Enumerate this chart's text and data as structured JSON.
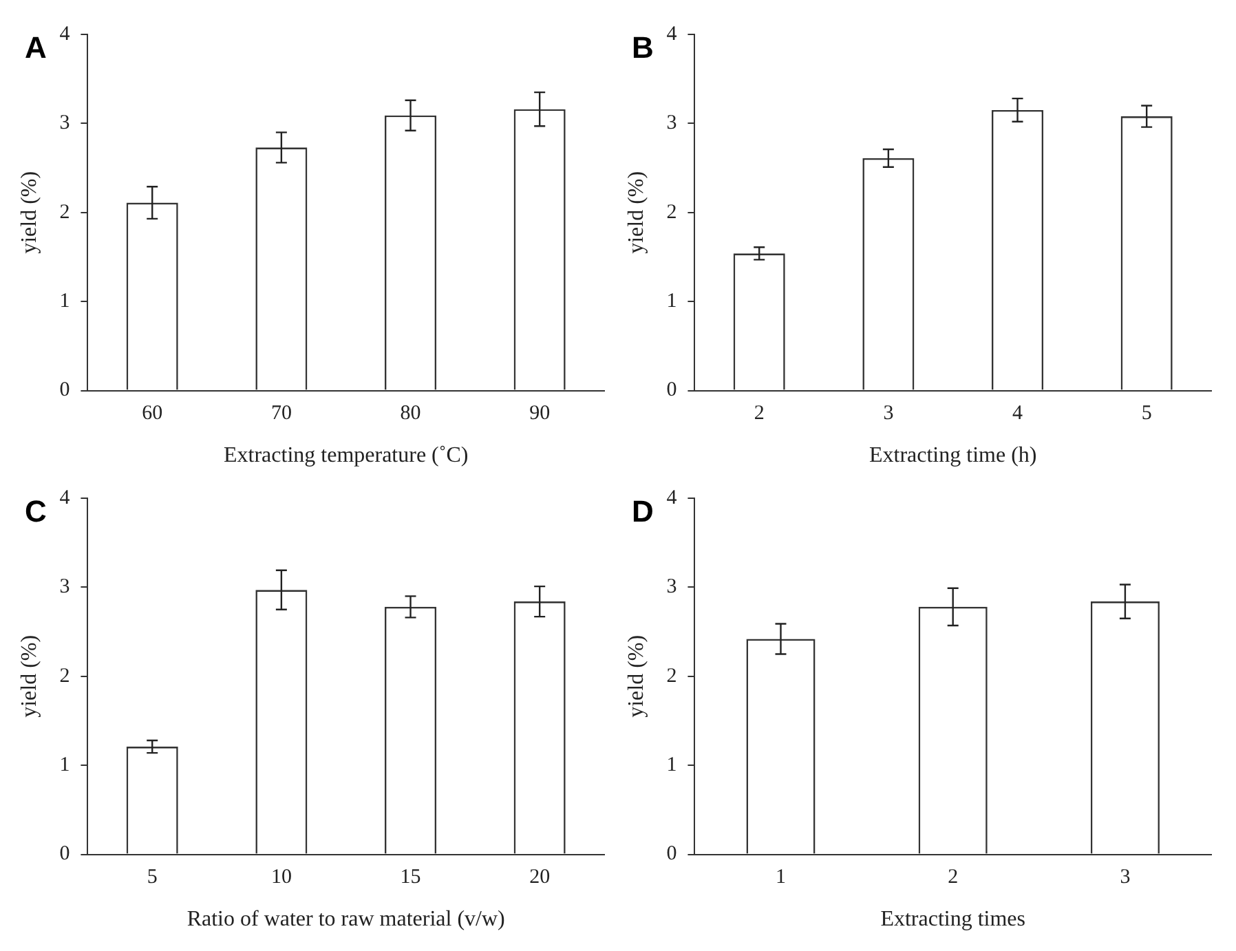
{
  "chart_data": [
    {
      "type": "bar",
      "title": "A",
      "xlabel": "Extracting temperature (˚C)",
      "ylabel": "yield (%)",
      "categories": [
        "60",
        "70",
        "80",
        "90"
      ],
      "values": [
        2.11,
        2.73,
        3.09,
        3.16
      ],
      "errors": [
        0.18,
        0.17,
        0.17,
        0.19
      ],
      "color": "#ffffff",
      "ylim": [
        0,
        4
      ],
      "yticks": [
        0,
        1,
        2,
        3,
        4
      ],
      "grid": false,
      "legend": false
    },
    {
      "type": "bar",
      "title": "B",
      "xlabel": "Extracting time (h)",
      "ylabel": "yield (%)",
      "categories": [
        "2",
        "3",
        "4",
        "5"
      ],
      "values": [
        1.54,
        2.61,
        3.15,
        3.08
      ],
      "errors": [
        0.07,
        0.1,
        0.13,
        0.12
      ],
      "color": "#ffffff",
      "ylim": [
        0,
        4
      ],
      "yticks": [
        0,
        1,
        2,
        3,
        4
      ],
      "grid": false,
      "legend": false
    },
    {
      "type": "bar",
      "title": "C",
      "xlabel": "Ratio of water to raw material (v/w)",
      "ylabel": "yield (%)",
      "categories": [
        "5",
        "10",
        "15",
        "20"
      ],
      "values": [
        1.21,
        2.97,
        2.78,
        2.84
      ],
      "errors": [
        0.07,
        0.22,
        0.12,
        0.17
      ],
      "color": "#ffffff",
      "ylim": [
        0,
        4
      ],
      "yticks": [
        0,
        1,
        2,
        3,
        4
      ],
      "grid": false,
      "legend": false
    },
    {
      "type": "bar",
      "title": "D",
      "xlabel": "Extracting times",
      "ylabel": "yield (%)",
      "categories": [
        "1",
        "2",
        "3"
      ],
      "values": [
        2.42,
        2.78,
        2.84
      ],
      "errors": [
        0.17,
        0.21,
        0.19
      ],
      "color": "#ffffff",
      "ylim": [
        0,
        4
      ],
      "yticks": [
        0,
        1,
        2,
        3,
        4
      ],
      "grid": false,
      "legend": false
    }
  ]
}
